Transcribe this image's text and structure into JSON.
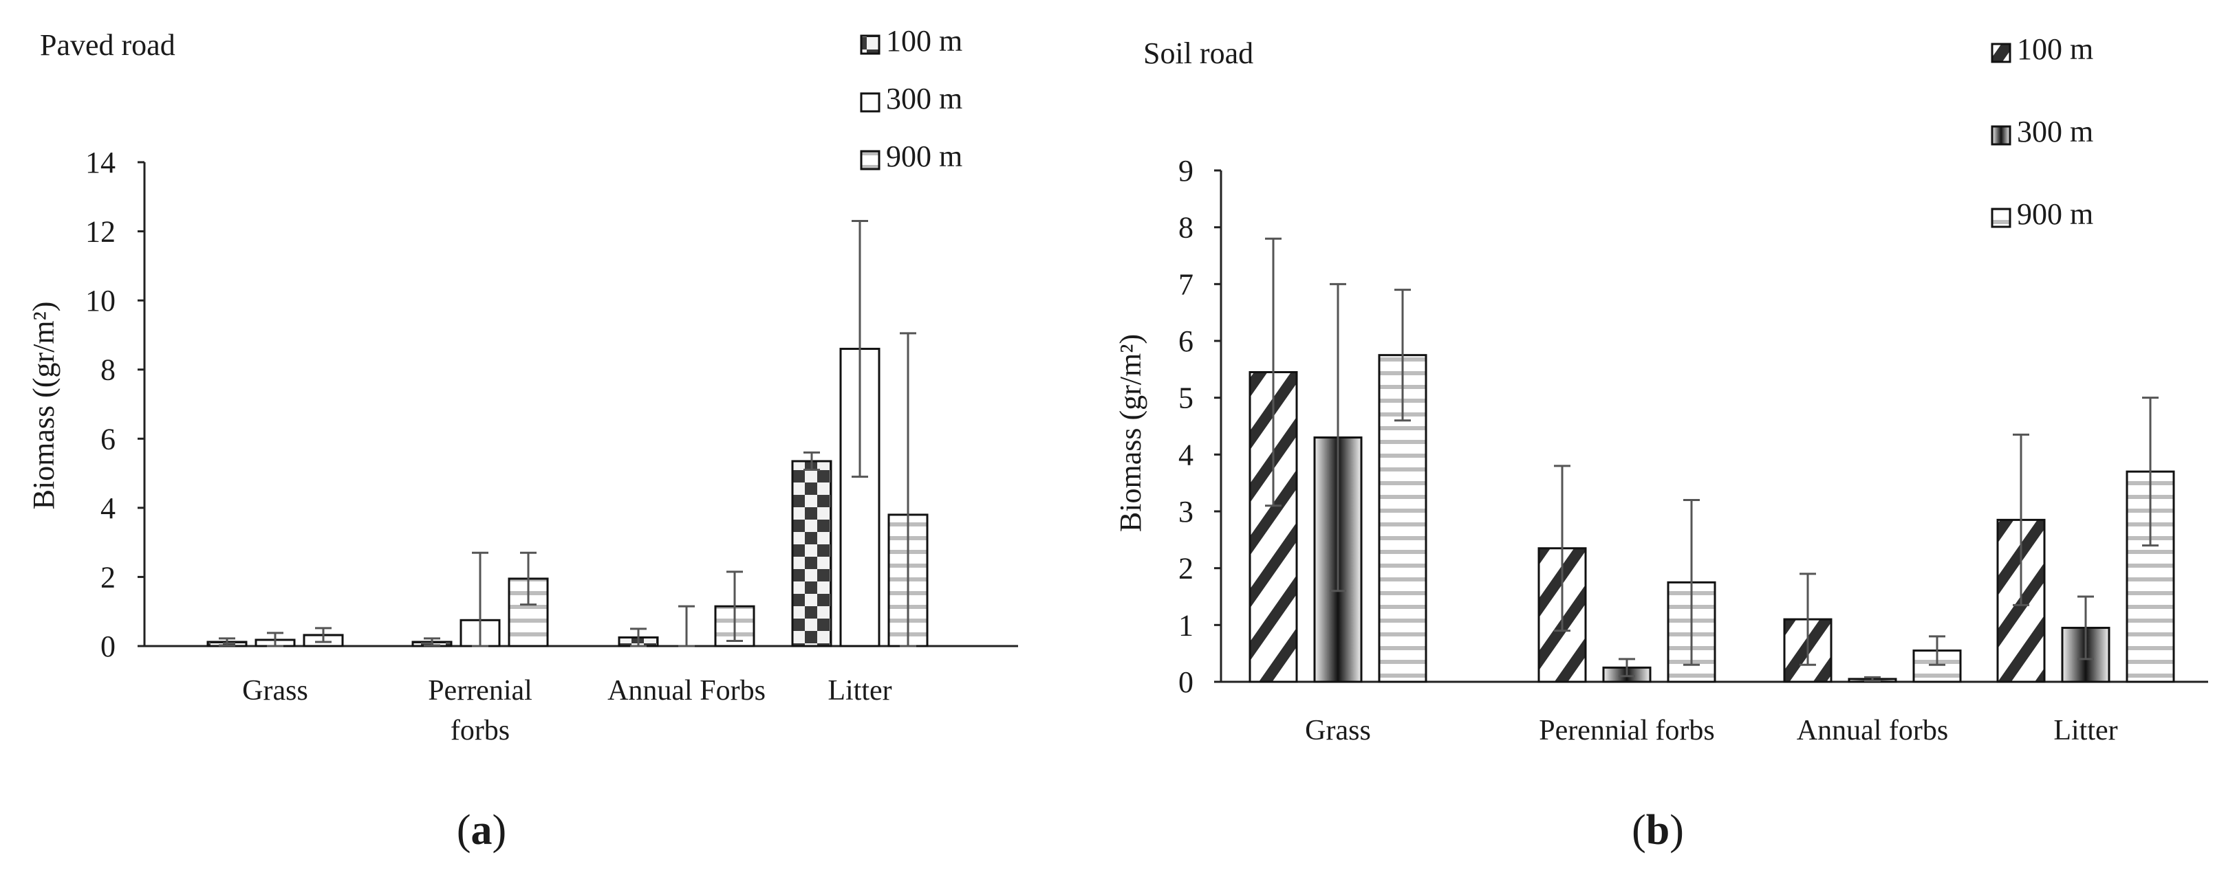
{
  "chart_data": [
    {
      "type": "bar",
      "panel_label": "a",
      "title": "Paved road",
      "ylabel": "Biomass ((gr/m²)",
      "ylim": [
        0,
        14
      ],
      "yticks": [
        0,
        2,
        4,
        6,
        8,
        10,
        12,
        14
      ],
      "categories": [
        "Grass",
        "Perrenial forbs",
        "Annual Forbs",
        "Litter"
      ],
      "category_lines": [
        [
          "Grass"
        ],
        [
          "Perrenial",
          "forbs"
        ],
        [
          "Annual Forbs"
        ],
        [
          "Litter"
        ]
      ],
      "legend_position": "top-right",
      "series": [
        {
          "name": "100 m",
          "values": [
            0.12,
            0.12,
            0.25,
            5.35
          ],
          "errors": [
            0.1,
            0.1,
            0.25,
            0.25
          ],
          "pattern": "checker"
        },
        {
          "name": "300 m",
          "values": [
            0.18,
            0.75,
            0.0,
            8.6
          ],
          "errors": [
            0.2,
            1.95,
            1.15,
            3.7
          ],
          "pattern": "white"
        },
        {
          "name": "900 m",
          "values": [
            0.32,
            1.95,
            1.15,
            3.8
          ],
          "errors": [
            0.2,
            0.75,
            1.0,
            5.25
          ],
          "pattern": "hstripe"
        }
      ]
    },
    {
      "type": "bar",
      "panel_label": "b",
      "title": "Soil road",
      "ylabel": "Biomass (gr/m²)",
      "ylim": [
        0,
        9
      ],
      "yticks": [
        0,
        1,
        2,
        3,
        4,
        5,
        6,
        7,
        8,
        9
      ],
      "categories": [
        "Grass",
        "Perennial forbs",
        "Annual forbs",
        "Litter"
      ],
      "category_lines": [
        [
          "Grass"
        ],
        [
          "Perennial forbs"
        ],
        [
          "Annual forbs"
        ],
        [
          "Litter"
        ]
      ],
      "legend_position": "top-right",
      "series": [
        {
          "name": "100 m",
          "values": [
            5.45,
            2.35,
            1.1,
            2.85
          ],
          "errors": [
            2.35,
            1.45,
            0.8,
            1.5
          ],
          "pattern": "diagonal"
        },
        {
          "name": "300 m",
          "values": [
            4.3,
            0.25,
            0.05,
            0.95
          ],
          "errors": [
            2.7,
            0.15,
            0.03,
            0.55
          ],
          "pattern": "vgrad"
        },
        {
          "name": "900 m",
          "values": [
            5.75,
            1.75,
            0.55,
            3.7
          ],
          "errors": [
            1.15,
            1.45,
            0.25,
            1.3
          ],
          "pattern": "hstripe"
        }
      ]
    }
  ]
}
